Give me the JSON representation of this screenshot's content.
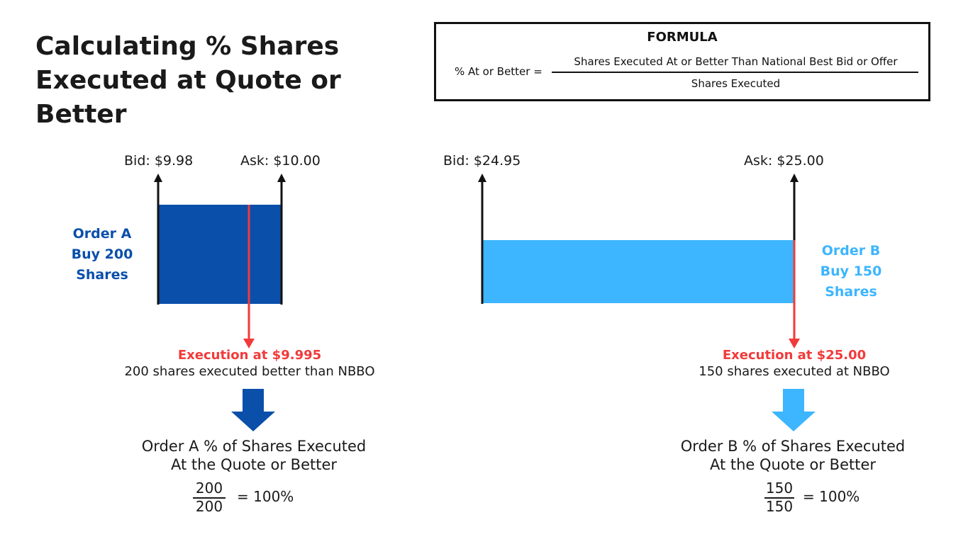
{
  "title": "Calculating % Shares Executed at Quote or Better",
  "formula": {
    "heading": "FORMULA",
    "lhs": "% At or Better =",
    "numerator": "Shares Executed At or Better Than National Best Bid or Offer",
    "denominator": "Shares Executed"
  },
  "order_a": {
    "bid": "Bid: $9.98",
    "ask": "Ask: $10.00",
    "label_lines": [
      "Order A",
      "Buy 200",
      "Shares"
    ],
    "color": "#0a4faa",
    "execution": "Execution at $9.995",
    "execution_note": "200 shares executed better than NBBO",
    "result_heading_lines": [
      "Order A % of Shares Executed",
      "At the Quote or Better"
    ],
    "numerator": "200",
    "denominator": "200",
    "result": "= 100%"
  },
  "order_b": {
    "bid": "Bid: $24.95",
    "ask": "Ask: $25.00",
    "label_lines": [
      "Order B",
      "Buy 150",
      "Shares"
    ],
    "color": "#3db5ff",
    "execution": "Execution at $25.00",
    "execution_note": "150 shares executed at NBBO",
    "result_heading_lines": [
      "Order B % of Shares Executed",
      "At the Quote or Better"
    ],
    "numerator": "150",
    "denominator": "150",
    "result": "= 100%"
  },
  "colors": {
    "execution": "#f23a3a",
    "text": "#1a1a1a"
  },
  "icons": [
    "up-arrow-icon",
    "down-arrow-icon",
    "block-down-arrow-icon"
  ]
}
